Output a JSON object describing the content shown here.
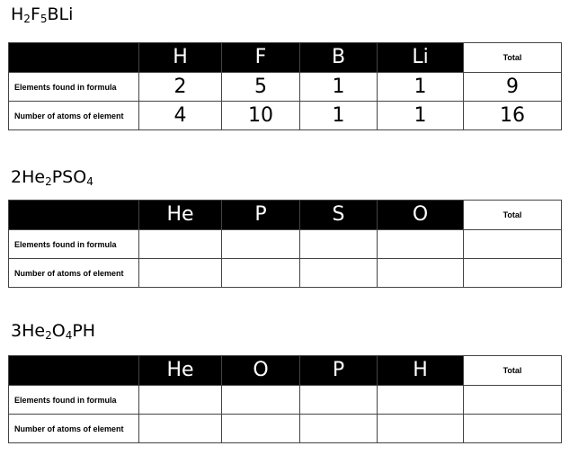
{
  "labels": {
    "total": "Total",
    "row1": "Elements found in formula",
    "row2": "Number of atoms of element"
  },
  "problems": [
    {
      "formula": [
        "H",
        "2",
        "F",
        "5",
        "BLi",
        ""
      ],
      "elements": [
        "H",
        "F",
        "B",
        "Li"
      ],
      "row1": [
        "2",
        "5",
        "1",
        "1",
        "9"
      ],
      "row2": [
        "4",
        "10",
        "1",
        "1",
        "16"
      ]
    },
    {
      "formula": [
        "2He",
        "2",
        "PSO",
        "4",
        "",
        ""
      ],
      "elements": [
        "He",
        "P",
        "S",
        "O"
      ],
      "row1": [
        "",
        "",
        "",
        "",
        ""
      ],
      "row2": [
        "",
        "",
        "",
        "",
        ""
      ]
    },
    {
      "formula": [
        "3He",
        "2",
        "O",
        "4",
        "PH",
        ""
      ],
      "elements": [
        "He",
        "O",
        "P",
        "H"
      ],
      "row1": [
        "",
        "",
        "",
        "",
        ""
      ],
      "row2": [
        "",
        "",
        "",
        "",
        ""
      ]
    }
  ]
}
